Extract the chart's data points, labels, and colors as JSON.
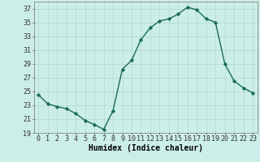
{
  "x": [
    0,
    1,
    2,
    3,
    4,
    5,
    6,
    7,
    8,
    9,
    10,
    11,
    12,
    13,
    14,
    15,
    16,
    17,
    18,
    19,
    20,
    21,
    22,
    23
  ],
  "y": [
    24.5,
    23.2,
    22.8,
    22.5,
    21.8,
    20.8,
    20.2,
    19.5,
    22.2,
    28.2,
    29.5,
    32.5,
    34.2,
    35.2,
    35.5,
    36.2,
    37.2,
    36.8,
    35.5,
    35.0,
    29.0,
    26.5,
    25.5,
    24.8
  ],
  "line_color": "#1a6b5a",
  "marker": "D",
  "marker_size": 2.2,
  "bg_color": "#cceee8",
  "grid_color": "#b0d8d0",
  "xlabel": "Humidex (Indice chaleur)",
  "ylim": [
    19,
    38
  ],
  "yticks": [
    19,
    21,
    23,
    25,
    27,
    29,
    31,
    33,
    35,
    37
  ],
  "xticks": [
    0,
    1,
    2,
    3,
    4,
    5,
    6,
    7,
    8,
    9,
    10,
    11,
    12,
    13,
    14,
    15,
    16,
    17,
    18,
    19,
    20,
    21,
    22,
    23
  ],
  "xlim": [
    -0.5,
    23.5
  ],
  "xlabel_fontsize": 7,
  "tick_fontsize": 6,
  "line_width": 1.0
}
